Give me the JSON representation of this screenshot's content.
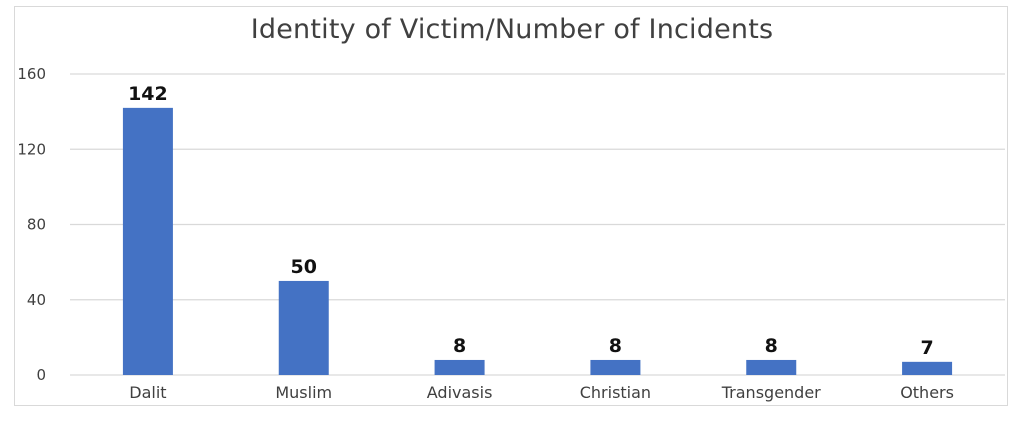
{
  "chart_data": {
    "type": "bar",
    "title": "Identity of Victim/Number of Incidents",
    "xlabel": "",
    "ylabel": "",
    "categories": [
      "Dalit",
      "Muslim",
      "Adivasis",
      "Christian",
      "Transgender",
      "Others"
    ],
    "values": [
      142,
      50,
      8,
      8,
      8,
      7
    ],
    "data_labels": [
      "142",
      "50",
      "8",
      "8",
      "8",
      "7"
    ],
    "ylim": [
      0,
      160
    ],
    "yticks": [
      0,
      40,
      80,
      120,
      160
    ],
    "ytick_labels": [
      "0",
      "40",
      "80",
      "120",
      "160"
    ],
    "grid": true,
    "legend": "none",
    "bar_color": "#4472c4",
    "grid_color": "#d9d9d9"
  }
}
